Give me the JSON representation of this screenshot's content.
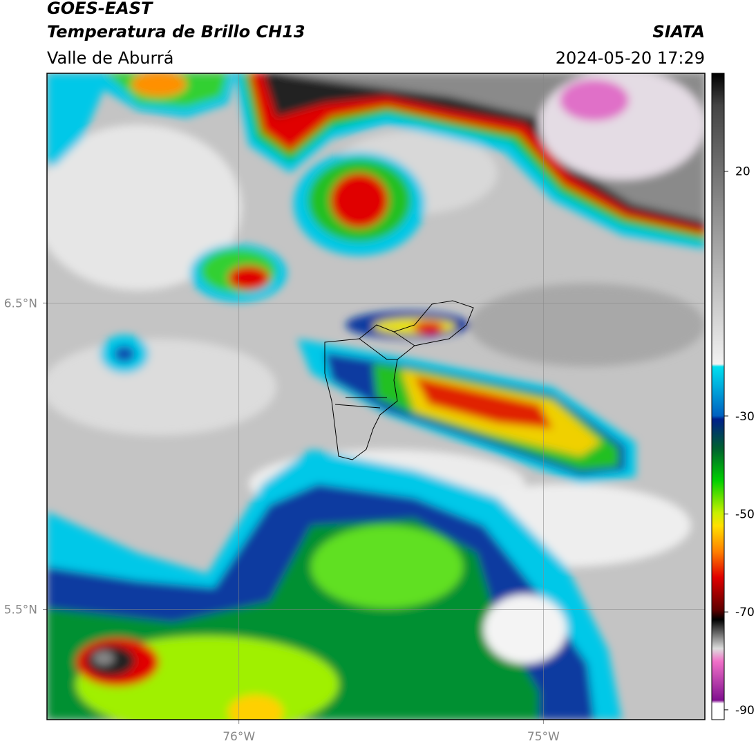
{
  "header": {
    "title": "GOES-EAST",
    "subtitle": "Temperatura de Brillo CH13",
    "source": "SIATA",
    "region": "Valle de Aburrá",
    "timestamp": "2024-05-20 17:29"
  },
  "map": {
    "xlim": [
      -76.63,
      -74.47
    ],
    "ylim": [
      5.14,
      7.25
    ],
    "xticks": [
      {
        "value": -76,
        "label": "76°W"
      },
      {
        "value": -75,
        "label": "75°W"
      }
    ],
    "yticks": [
      {
        "value": 6.5,
        "label": "6.5°N"
      },
      {
        "value": 5.5,
        "label": "5.5°N"
      }
    ]
  },
  "colorbar": {
    "lim": [
      -92,
      40
    ],
    "ticks": [
      20,
      -30,
      -50,
      -70,
      -90
    ]
  }
}
